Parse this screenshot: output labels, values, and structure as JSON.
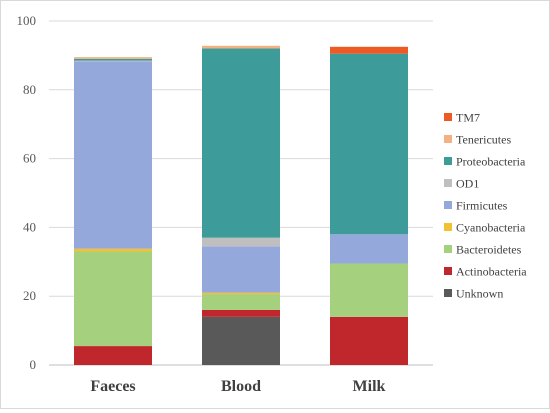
{
  "chart_data": {
    "type": "bar",
    "stacked": true,
    "categories": [
      "Faeces",
      "Blood",
      "Milk"
    ],
    "ylim": [
      0,
      100
    ],
    "yticks": [
      0,
      20,
      40,
      60,
      80,
      100
    ],
    "grid": true,
    "legend_position": "right",
    "series": [
      {
        "name": "Unknown",
        "color": "#595959",
        "values": [
          0.0,
          14.0,
          0.0
        ]
      },
      {
        "name": "Actinobacteria",
        "color": "#c0272d",
        "values": [
          5.5,
          2.0,
          14.0
        ]
      },
      {
        "name": "Bacteroidetes",
        "color": "#a5d17e",
        "values": [
          27.5,
          4.5,
          15.5
        ]
      },
      {
        "name": "Cyanobacteria",
        "color": "#f2c12e",
        "values": [
          0.8,
          0.5,
          0.0
        ]
      },
      {
        "name": "Firmicutes",
        "color": "#95a8dc",
        "values": [
          54.5,
          13.5,
          8.5
        ]
      },
      {
        "name": "OD1",
        "color": "#bfbfbf",
        "values": [
          0.2,
          2.5,
          0.0
        ]
      },
      {
        "name": "Proteobacteria",
        "color": "#3d9c99",
        "values": [
          0.5,
          55.0,
          52.5
        ]
      },
      {
        "name": "Tenericutes",
        "color": "#f4b183",
        "values": [
          0.5,
          0.8,
          0.0
        ]
      },
      {
        "name": "TM7",
        "color": "#ee5a24",
        "values": [
          0.0,
          0.0,
          2.0
        ]
      }
    ]
  }
}
